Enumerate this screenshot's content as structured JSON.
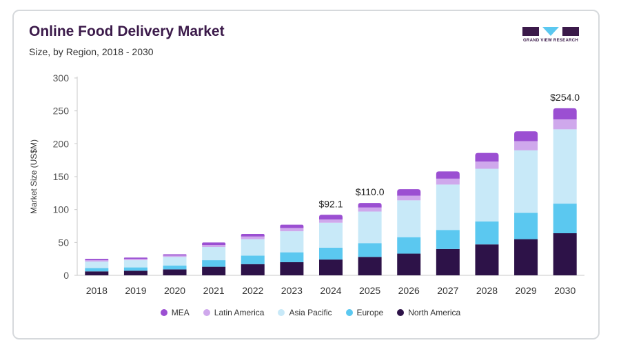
{
  "header": {
    "title": "Online Food Delivery Market",
    "subtitle": "Size, by Region, 2018 - 2030",
    "logo_text": "GRAND VIEW RESEARCH"
  },
  "chart_data": {
    "type": "bar",
    "stacked": true,
    "title": "Online Food Delivery Market",
    "subtitle": "Size, by Region, 2018 - 2030",
    "xlabel": "",
    "ylabel": "Market Size (US$M)",
    "ylim": [
      0,
      300
    ],
    "yticks": [
      0,
      50,
      100,
      150,
      200,
      250,
      300
    ],
    "grid": false,
    "legend_position": "bottom",
    "categories": [
      "2018",
      "2019",
      "2020",
      "2021",
      "2022",
      "2023",
      "2024",
      "2025",
      "2026",
      "2027",
      "2028",
      "2029",
      "2030"
    ],
    "series": [
      {
        "name": "North America",
        "color": "#2d1248",
        "values": [
          6,
          7,
          9,
          13,
          17,
          20,
          24,
          28,
          33,
          40,
          47,
          55,
          64
        ]
      },
      {
        "name": "Europe",
        "color": "#5bc8f0",
        "values": [
          5,
          5,
          6,
          10,
          13,
          15,
          18,
          21,
          25,
          29,
          35,
          40,
          45
        ]
      },
      {
        "name": "Asia Pacific",
        "color": "#c8e9f8",
        "values": [
          10,
          11,
          13,
          20,
          25,
          32,
          38,
          48,
          56,
          69,
          80,
          95,
          113
        ]
      },
      {
        "name": "Latin America",
        "color": "#cfa8ec",
        "values": [
          2,
          2,
          2,
          3,
          4,
          5,
          5,
          6,
          7,
          9,
          11,
          14,
          15
        ]
      },
      {
        "name": "MEA",
        "color": "#9b4fd2",
        "values": [
          2,
          2,
          2,
          4,
          4,
          5,
          7,
          7,
          10,
          11,
          13,
          15,
          17
        ]
      }
    ],
    "legend_order": [
      "MEA",
      "Latin America",
      "Asia Pacific",
      "Europe",
      "North America"
    ],
    "annotations": [
      {
        "category": "2024",
        "text": "$92.1"
      },
      {
        "category": "2025",
        "text": "$110.0"
      },
      {
        "category": "2030",
        "text": "$254.0"
      }
    ]
  }
}
